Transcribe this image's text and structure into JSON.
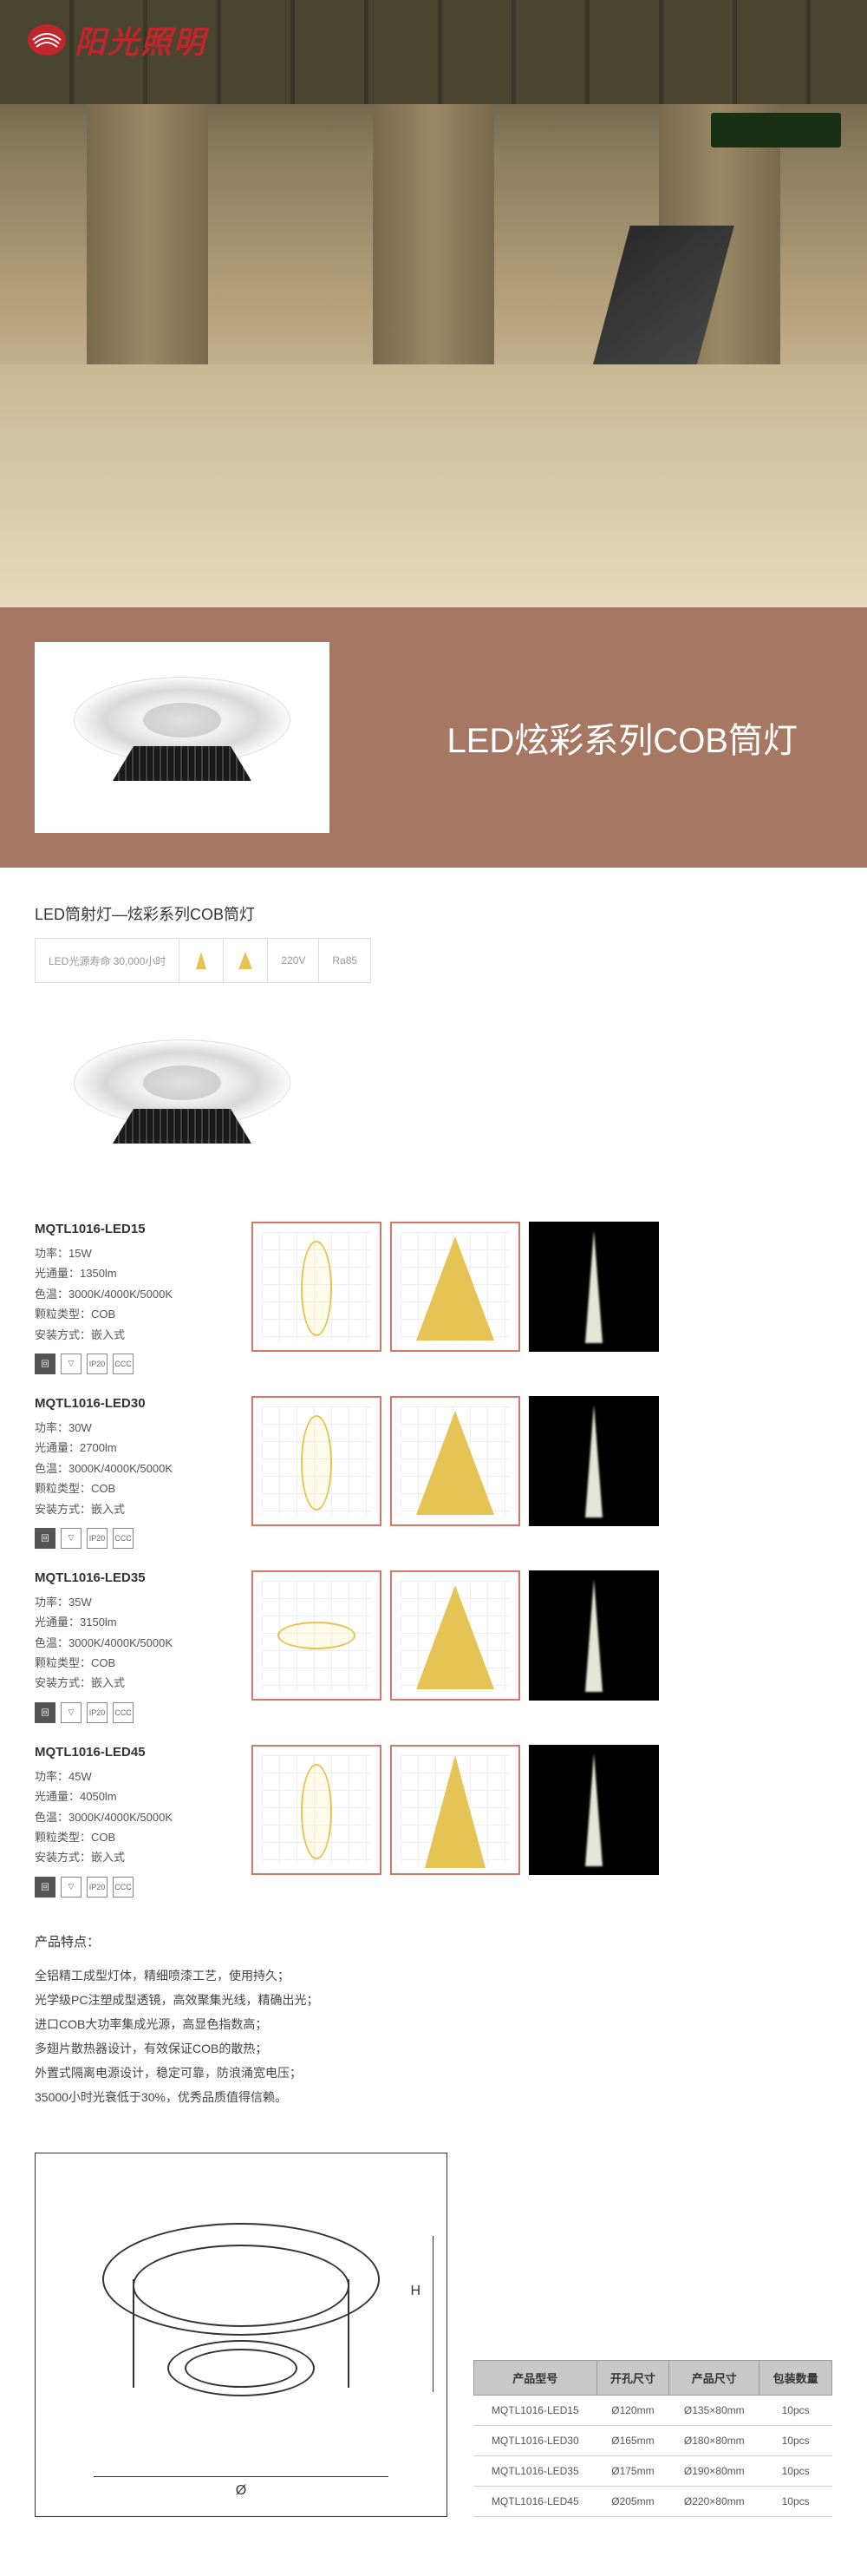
{
  "logo_text": "阳光照明",
  "title_band_text": "LED炫彩系列COB筒灯",
  "subtitle": "LED筒射灯—炫彩系列COB筒灯",
  "badges": {
    "lifetime": "LED光源寿命\n30,000小时",
    "voltage": "220V",
    "cri": "Ra85"
  },
  "products": [
    {
      "model": "MQTL1016-LED15",
      "specs": [
        "功率：15W",
        "光通量：1350lm",
        "色温：3000K/4000K/5000K",
        "颗粒类型：COB",
        "安装方式：嵌入式"
      ],
      "chart_shape": "ellipse"
    },
    {
      "model": "MQTL1016-LED30",
      "specs": [
        "功率：30W",
        "光通量：2700lm",
        "色温：3000K/4000K/5000K",
        "颗粒类型：COB",
        "安装方式：嵌入式"
      ],
      "chart_shape": "ellipse"
    },
    {
      "model": "MQTL1016-LED35",
      "specs": [
        "功率：35W",
        "光通量：3150lm",
        "色温：3000K/4000K/5000K",
        "颗粒类型：COB",
        "安装方式：嵌入式"
      ],
      "chart_shape": "ellipse_h"
    },
    {
      "model": "MQTL1016-LED45",
      "specs": [
        "功率：45W",
        "光通量：4050lm",
        "色温：3000K/4000K/5000K",
        "颗粒类型：COB",
        "安装方式：嵌入式"
      ],
      "chart_shape": "cone_narrow"
    }
  ],
  "features": {
    "title": "产品特点：",
    "lines": [
      "全铝精工成型灯体，精细喷漆工艺，使用持久；",
      "光学级PC注塑成型透镜，高效聚集光线，精确出光；",
      "进口COB大功率集成光源，高显色指数高；",
      "多翅片散热器设计，有效保证COB的散热；",
      "外置式隔离电源设计，稳定可靠，防浪涌宽电压；",
      "35000小时光衰低于30%，优秀品质值得信赖。"
    ]
  },
  "dim_labels": {
    "h": "H",
    "phi": "Ø"
  },
  "table": {
    "headers": [
      "产品型号",
      "开孔尺寸",
      "产品尺寸",
      "包装数量"
    ],
    "rows": [
      [
        "MQTL1016-LED15",
        "Ø120mm",
        "Ø135×80mm",
        "10pcs"
      ],
      [
        "MQTL1016-LED30",
        "Ø165mm",
        "Ø180×80mm",
        "10pcs"
      ],
      [
        "MQTL1016-LED35",
        "Ø175mm",
        "Ø190×80mm",
        "10pcs"
      ],
      [
        "MQTL1016-LED45",
        "Ø205mm",
        "Ø220×80mm",
        "10pcs"
      ]
    ]
  },
  "cert_icons": [
    "回",
    "▽",
    "IP20",
    "CCC"
  ],
  "colors": {
    "brand_red": "#c1262d",
    "title_band": "#a67863",
    "chart_border": "#d4776a",
    "chart_fill": "#e5c455"
  }
}
